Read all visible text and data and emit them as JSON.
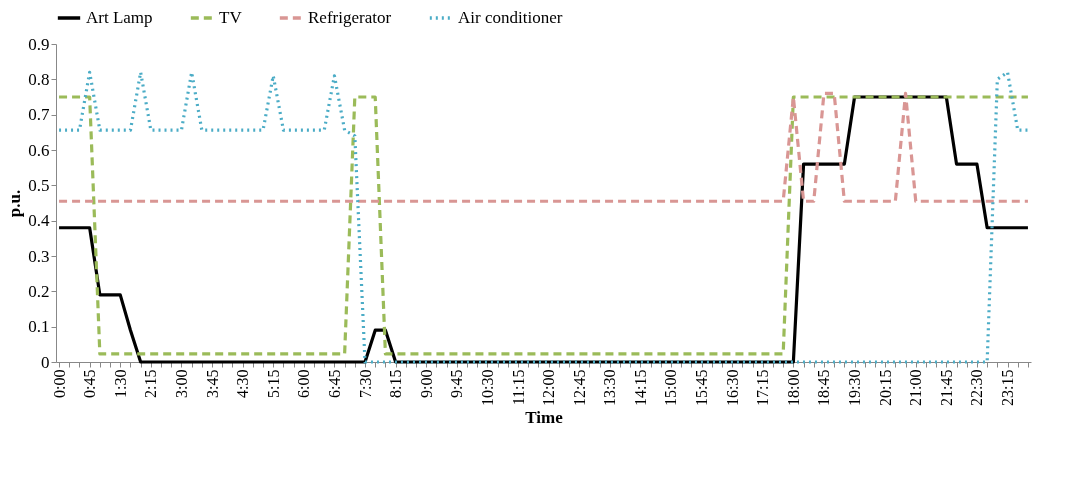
{
  "chart_data": {
    "type": "line",
    "xlabel": "Time",
    "ylabel": "p.u.",
    "categories": [
      "0:00",
      null,
      null,
      "0:45",
      null,
      null,
      "1:30",
      null,
      null,
      "2:15",
      null,
      null,
      "3:00",
      null,
      null,
      "3:45",
      null,
      null,
      "4:30",
      null,
      null,
      "5:15",
      null,
      null,
      "6:00",
      null,
      null,
      "6:45",
      null,
      null,
      "7:30",
      null,
      null,
      "8:15",
      null,
      null,
      "9:00",
      null,
      null,
      "9:45",
      null,
      null,
      "10:30",
      null,
      null,
      "11:15",
      null,
      null,
      "12:00",
      null,
      null,
      "12:45",
      null,
      null,
      "13:30",
      null,
      null,
      "14:15",
      null,
      null,
      "15:00",
      null,
      null,
      "15:45",
      null,
      null,
      "16:30",
      null,
      null,
      "17:15",
      null,
      null,
      "18:00",
      null,
      null,
      "18:45",
      null,
      null,
      "19:30",
      null,
      null,
      "20:15",
      null,
      null,
      "21:00",
      null,
      null,
      "21:45",
      null,
      null,
      "22:30",
      null,
      null,
      "23:15",
      null,
      null
    ],
    "ylim": [
      0,
      0.9
    ],
    "yticks": [
      0,
      0.1,
      0.2,
      0.3,
      0.4,
      0.5,
      0.6,
      0.7,
      0.8,
      0.9
    ],
    "grid": false,
    "legend": "top",
    "marker": "none",
    "series": [
      {
        "name": "Art Lamp",
        "color": "#000000",
        "line_style": "solid",
        "values": [
          0.38,
          0.38,
          0.38,
          0.38,
          0.19,
          0.19,
          0.19,
          0.09,
          0,
          0,
          0,
          0,
          0,
          0,
          0,
          0,
          0,
          0,
          0,
          0,
          0,
          0,
          0,
          0,
          0,
          0,
          0,
          0,
          0,
          0,
          0,
          0.09,
          0.09,
          0,
          0,
          0,
          0,
          0,
          0,
          0,
          0,
          0,
          0,
          0,
          0,
          0,
          0,
          0,
          0,
          0,
          0,
          0,
          0,
          0,
          0,
          0,
          0,
          0,
          0,
          0,
          0,
          0,
          0,
          0,
          0,
          0,
          0,
          0,
          0,
          0,
          0,
          0,
          0,
          0.56,
          0.56,
          0.56,
          0.56,
          0.56,
          0.75,
          0.75,
          0.75,
          0.75,
          0.75,
          0.75,
          0.75,
          0.75,
          0.75,
          0.75,
          0.56,
          0.56,
          0.56,
          0.38,
          0.38,
          0.38,
          0.38,
          0.38
        ]
      },
      {
        "name": "TV",
        "color": "#9bbb59",
        "line_style": "dashed",
        "values": [
          0.75,
          0.75,
          0.75,
          0.75,
          0.023,
          0.023,
          0.023,
          0.023,
          0.023,
          0.023,
          0.023,
          0.023,
          0.023,
          0.023,
          0.023,
          0.023,
          0.023,
          0.023,
          0.023,
          0.023,
          0.023,
          0.023,
          0.023,
          0.023,
          0.023,
          0.023,
          0.023,
          0.023,
          0.023,
          0.75,
          0.75,
          0.75,
          0.023,
          0.023,
          0.023,
          0.023,
          0.023,
          0.023,
          0.023,
          0.023,
          0.023,
          0.023,
          0.023,
          0.023,
          0.023,
          0.023,
          0.023,
          0.023,
          0.023,
          0.023,
          0.023,
          0.023,
          0.023,
          0.023,
          0.023,
          0.023,
          0.023,
          0.023,
          0.023,
          0.023,
          0.023,
          0.023,
          0.023,
          0.023,
          0.023,
          0.023,
          0.023,
          0.023,
          0.023,
          0.023,
          0.023,
          0.023,
          0.75,
          0.75,
          0.75,
          0.75,
          0.75,
          0.75,
          0.75,
          0.75,
          0.75,
          0.75,
          0.75,
          0.75,
          0.75,
          0.75,
          0.75,
          0.75,
          0.75,
          0.75,
          0.75,
          0.75,
          0.75,
          0.75,
          0.75,
          0.75
        ]
      },
      {
        "name": "Refrigerator",
        "color": "#d99694",
        "line_style": "dashed",
        "values": [
          0.455,
          0.455,
          0.455,
          0.455,
          0.455,
          0.455,
          0.455,
          0.455,
          0.455,
          0.455,
          0.455,
          0.455,
          0.455,
          0.455,
          0.455,
          0.455,
          0.455,
          0.455,
          0.455,
          0.455,
          0.455,
          0.455,
          0.455,
          0.455,
          0.455,
          0.455,
          0.455,
          0.455,
          0.455,
          0.455,
          0.455,
          0.455,
          0.455,
          0.455,
          0.455,
          0.455,
          0.455,
          0.455,
          0.455,
          0.455,
          0.455,
          0.455,
          0.455,
          0.455,
          0.455,
          0.455,
          0.455,
          0.455,
          0.455,
          0.455,
          0.455,
          0.455,
          0.455,
          0.455,
          0.455,
          0.455,
          0.455,
          0.455,
          0.455,
          0.455,
          0.455,
          0.455,
          0.455,
          0.455,
          0.455,
          0.455,
          0.455,
          0.455,
          0.455,
          0.455,
          0.455,
          0.455,
          0.75,
          0.455,
          0.455,
          0.76,
          0.76,
          0.455,
          0.455,
          0.455,
          0.455,
          0.455,
          0.455,
          0.76,
          0.455,
          0.455,
          0.455,
          0.455,
          0.455,
          0.455,
          0.455,
          0.455,
          0.455,
          0.455,
          0.455,
          0.455
        ]
      },
      {
        "name": "Air conditioner",
        "color": "#4bacc6",
        "line_style": "dotted",
        "values": [
          0.656,
          0.656,
          0.656,
          0.82,
          0.656,
          0.656,
          0.656,
          0.656,
          0.82,
          0.656,
          0.656,
          0.656,
          0.656,
          0.82,
          0.656,
          0.656,
          0.656,
          0.656,
          0.656,
          0.656,
          0.656,
          0.81,
          0.656,
          0.656,
          0.656,
          0.656,
          0.656,
          0.81,
          0.656,
          0.64,
          0,
          0,
          0,
          0,
          0,
          0,
          0,
          0,
          0,
          0,
          0,
          0,
          0,
          0,
          0,
          0,
          0,
          0,
          0,
          0,
          0,
          0,
          0,
          0,
          0,
          0,
          0,
          0,
          0,
          0,
          0,
          0,
          0,
          0,
          0,
          0,
          0,
          0,
          0,
          0,
          0,
          0,
          0,
          0,
          0,
          0,
          0,
          0,
          0,
          0,
          0,
          0,
          0,
          0,
          0,
          0,
          0,
          0,
          0,
          0,
          0,
          0,
          0.8,
          0.82,
          0.656,
          0.656
        ]
      }
    ]
  }
}
